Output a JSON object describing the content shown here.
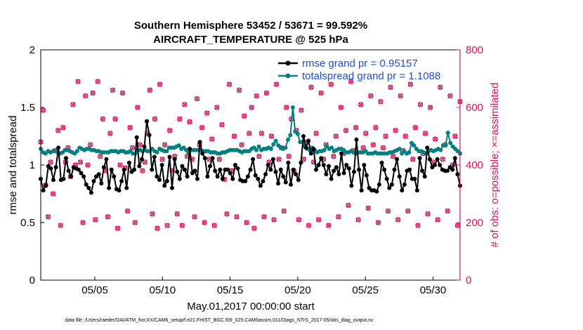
{
  "chart_data": {
    "type": "line",
    "title": "Southern Hemisphere 53452 / 53671 = 99.592%",
    "subtitle": "AIRCRAFT_TEMPERATURE @ 525 hPa",
    "xlabel": "May.01,2017 00:00:00 start",
    "ylabel_left": "rmse and totalspread",
    "ylabel_right": "# of obs: o=possible; ×=assimilated",
    "footnote": "data file: /Users/raeder/DAI/ATM_forcXX/CAM6_setup/f.e21.FHIST_BGC.f09_025.CAM6assim.011/Diags_NTrS_2017-05/obs_diag_output.nc",
    "x_tick_labels": [
      "05/05",
      "05/10",
      "05/15",
      "05/20",
      "05/25",
      "05/30"
    ],
    "x_tick_days": [
      5,
      10,
      15,
      20,
      25,
      30
    ],
    "xlim_days": [
      1,
      32
    ],
    "ylim_left": [
      0,
      2
    ],
    "y_tick_labels_left": [
      "0",
      "0.5",
      "1",
      "1.5",
      "2"
    ],
    "ylim_right": [
      0,
      800
    ],
    "y_tick_labels_right": [
      "0",
      "200",
      "400",
      "600",
      "800"
    ],
    "grid": false,
    "legend_position": "top-right",
    "colors": {
      "rmse": "#000000",
      "spread": "#008080",
      "obs": "#d6125d",
      "right_axis": "#d6125d",
      "legend_text": "#1f4fd8"
    },
    "series": [
      {
        "name": "rmse grand pr = 0.95157",
        "marker": "filled circle",
        "values": [
          0.88,
          0.78,
          0.82,
          0.99,
          0.97,
          0.87,
          0.98,
          1.15,
          0.87,
          0.88,
          1.06,
          0.95,
          0.9,
          0.98,
          0.97,
          0.96,
          0.93,
          0.9,
          0.83,
          0.8,
          0.76,
          0.86,
          0.9,
          0.92,
          0.84,
          0.98,
          1.05,
          0.8,
          0.96,
          0.9,
          0.79,
          0.78,
          0.86,
          0.96,
          0.8,
          1.02,
          0.94,
          0.96,
          1.24,
          0.99,
          1.05,
          1.16,
          1.38,
          1.26,
          0.96,
          1.07,
          0.9,
          0.87,
          1.0,
          0.82,
          0.86,
          1.07,
          0.8,
          1.05,
          0.94,
          0.88,
          0.99,
          0.96,
          0.9,
          1.14,
          0.93,
          0.95,
          0.88,
          1.2,
          1.1,
          1.06,
          0.9,
          0.99,
          1.06,
          0.95,
          0.9,
          0.96,
          0.88,
          0.96,
          0.96,
          0.93,
          0.88,
          1.0,
          0.97,
          0.87,
          0.86,
          0.86,
          0.9,
          0.96,
          1.05,
          0.91,
          0.88,
          0.82,
          0.86,
          0.92,
          1.0,
          0.96,
          1.05,
          0.94,
          0.84,
          0.96,
          0.9,
          0.85,
          1.02,
          0.83,
          0.96,
          0.92,
          0.87,
          1.02,
          1.25,
          1.15,
          1.21,
          1.1,
          1.14,
          0.96,
          1.0,
          1.06,
          1.0,
          0.92,
          0.99,
          0.88,
          0.95,
          0.98,
          0.92,
          1.1,
          0.93,
          1.0,
          0.97,
          0.82,
          0.94,
          1.22,
          0.96,
          0.78,
          1.0,
          0.91,
          0.8,
          0.78,
          0.78,
          0.77,
          0.83,
          1.02,
          0.96,
          0.88,
          0.8,
          0.83,
          0.96,
          1.05,
          0.9,
          0.78,
          0.83,
          0.95,
          0.96,
          0.88,
          0.88,
          0.78,
          1.06,
          0.95,
          0.9,
          1.15,
          1.05,
          0.98,
          1.0,
          1.05,
          1.0,
          0.96,
          0.95,
          0.95,
          0.98,
          0.96,
          1.06,
          0.92,
          0.82
        ]
      },
      {
        "name": "totalspread grand pr = 1.1088",
        "marker": "filled circle",
        "values": [
          1.14,
          1.11,
          1.1,
          1.12,
          1.11,
          1.12,
          1.12,
          1.11,
          1.1,
          1.11,
          1.13,
          1.13,
          1.12,
          1.11,
          1.1,
          1.12,
          1.15,
          1.14,
          1.13,
          1.14,
          1.14,
          1.13,
          1.13,
          1.12,
          1.12,
          1.11,
          1.11,
          1.11,
          1.11,
          1.12,
          1.12,
          1.12,
          1.11,
          1.12,
          1.12,
          1.11,
          1.11,
          1.12,
          1.1,
          1.1,
          1.13,
          1.13,
          1.12,
          1.13,
          1.12,
          1.12,
          1.14,
          1.12,
          1.11,
          1.14,
          1.13,
          1.12,
          1.12,
          1.15,
          1.15,
          1.15,
          1.16,
          1.17,
          1.14,
          1.15,
          1.13,
          1.11,
          1.13,
          1.13,
          1.13,
          1.13,
          1.13,
          1.12,
          1.12,
          1.12,
          1.11,
          1.11,
          1.11,
          1.1,
          1.1,
          1.11,
          1.11,
          1.12,
          1.13,
          1.13,
          1.13,
          1.13,
          1.12,
          1.11,
          1.12,
          1.12,
          1.12,
          1.14,
          1.15,
          1.13,
          1.16,
          1.13,
          1.14,
          1.14,
          1.15,
          1.14,
          1.18,
          1.21,
          1.17,
          1.15,
          1.14,
          1.15,
          1.22,
          1.26,
          1.5,
          1.29,
          1.27,
          1.2,
          1.2,
          1.16,
          1.14,
          1.13,
          1.15,
          1.13,
          1.11,
          1.12,
          1.12,
          1.13,
          1.16,
          1.14,
          1.15,
          1.12,
          1.13,
          1.14,
          1.14,
          1.13,
          1.11,
          1.11,
          1.12,
          1.11,
          1.1,
          1.11,
          1.11,
          1.11,
          1.12,
          1.1,
          1.1,
          1.1,
          1.11,
          1.1,
          1.1,
          1.1,
          1.1,
          1.1,
          1.11,
          1.11,
          1.12,
          1.13,
          1.14,
          1.1,
          1.12,
          1.1,
          1.11,
          1.19,
          1.17,
          1.14,
          1.12,
          1.12,
          1.11,
          1.1,
          1.12,
          1.13,
          1.12,
          1.13,
          1.14,
          1.13,
          1.17,
          1.17,
          1.28,
          1.19,
          1.16,
          1.14,
          1.12,
          1.1
        ]
      }
    ],
    "obs_counts": {
      "axis": "right",
      "marker": "o and × overlaid",
      "values": [
        480,
        590,
        330,
        220,
        410,
        300,
        450,
        520,
        190,
        530,
        410,
        460,
        360,
        610,
        400,
        690,
        410,
        200,
        640,
        400,
        470,
        650,
        210,
        690,
        430,
        560,
        380,
        220,
        510,
        660,
        560,
        180,
        400,
        650,
        390,
        240,
        530,
        460,
        200,
        600,
        470,
        380,
        410,
        510,
        660,
        230,
        560,
        180,
        680,
        420,
        470,
        190,
        520,
        380,
        430,
        230,
        560,
        190,
        610,
        430,
        550,
        420,
        220,
        630,
        470,
        530,
        200,
        580,
        420,
        490,
        190,
        600,
        420,
        540,
        350,
        230,
        680,
        380,
        500,
        220,
        660,
        470,
        570,
        200,
        510,
        600,
        180,
        640,
        430,
        510,
        220,
        650,
        410,
        500,
        210,
        680,
        420,
        460,
        240,
        600,
        430,
        560,
        380,
        520,
        210,
        590,
        420,
        480,
        190,
        670,
        410,
        510,
        210,
        650,
        420,
        470,
        190,
        680,
        430,
        500,
        220,
        600,
        440,
        520,
        260,
        690,
        450,
        530,
        210,
        610,
        460,
        510,
        250,
        640,
        470,
        530,
        200,
        620,
        460,
        500,
        240,
        670,
        430,
        520,
        210,
        640,
        450,
        500,
        240,
        680,
        420,
        530,
        190,
        610,
        440,
        510,
        230,
        600,
        410,
        490,
        210,
        670,
        420,
        470,
        240,
        640,
        400,
        500,
        190,
        620
      ]
    }
  }
}
